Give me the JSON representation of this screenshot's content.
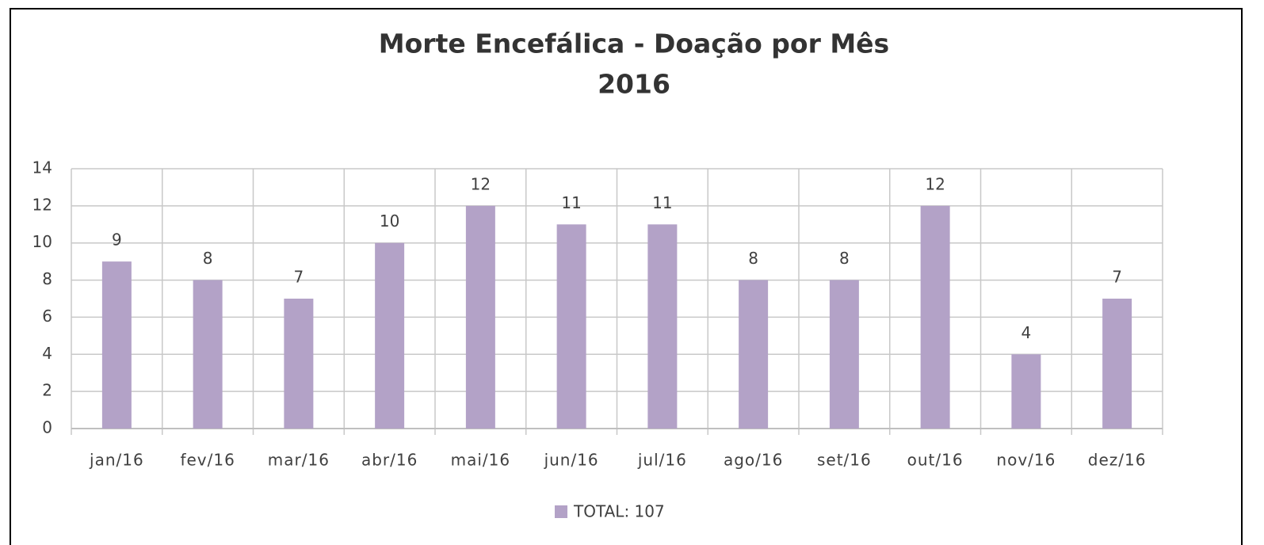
{
  "chart_data": {
    "type": "bar",
    "title": "Morte Encefálica - Doação por Mês",
    "subtitle": "2016",
    "categories": [
      "jan/16",
      "fev/16",
      "mar/16",
      "abr/16",
      "mai/16",
      "jun/16",
      "jul/16",
      "ago/16",
      "set/16",
      "out/16",
      "nov/16",
      "dez/16"
    ],
    "series": [
      {
        "name": "TOTAL: 107",
        "color": "#b3a2c7",
        "values": [
          9,
          8,
          7,
          10,
          12,
          11,
          11,
          8,
          8,
          12,
          4,
          7
        ]
      }
    ],
    "ylim": [
      0,
      14
    ],
    "yticks": [
      0,
      2,
      4,
      6,
      8,
      10,
      12,
      14
    ],
    "grid": true,
    "legend": "bottom"
  }
}
